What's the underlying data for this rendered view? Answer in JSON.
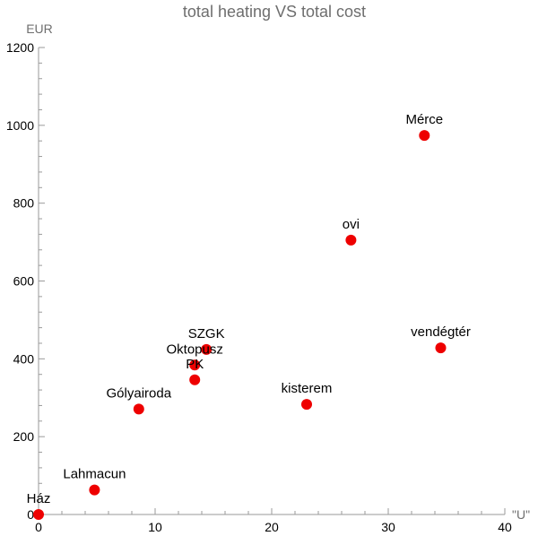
{
  "chart_data": {
    "type": "scatter",
    "title": "total heating VS total cost",
    "xlabel": "\"U\"",
    "ylabel": "EUR",
    "xlim": [
      0,
      40
    ],
    "ylim": [
      0,
      1200
    ],
    "x_ticks": [
      0,
      10,
      20,
      30,
      40
    ],
    "y_ticks": [
      0,
      200,
      400,
      600,
      800,
      1000,
      1200
    ],
    "grid": false,
    "marker_color": "#ee0000",
    "points": [
      {
        "label": "Ház",
        "x": 0,
        "y": 0
      },
      {
        "label": "Lahmacun",
        "x": 4.8,
        "y": 63
      },
      {
        "label": "Gólyairoda",
        "x": 8.6,
        "y": 271
      },
      {
        "label": "PK",
        "x": 13.4,
        "y": 346
      },
      {
        "label": "Oktopusz",
        "x": 13.4,
        "y": 384
      },
      {
        "label": "SZGK",
        "x": 14.4,
        "y": 424
      },
      {
        "label": "kisterem",
        "x": 23.0,
        "y": 283
      },
      {
        "label": "ovi",
        "x": 26.8,
        "y": 705
      },
      {
        "label": "Mérce",
        "x": 33.1,
        "y": 974
      },
      {
        "label": "vendégtér",
        "x": 34.5,
        "y": 428
      }
    ]
  }
}
